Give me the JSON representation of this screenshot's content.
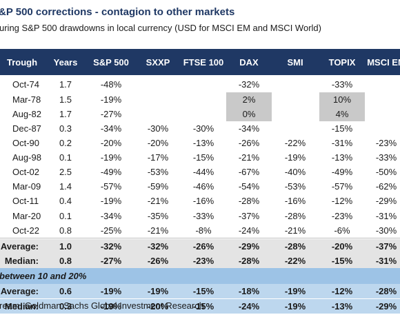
{
  "title": "&P 500 corrections - contagion to other markets",
  "subtitle": "uring S&P 500 drawdowns in local currency (USD for MSCI EM and MSCI World)",
  "source": "ream, Goldman Sachs Global Investment Research",
  "chart_data": {
    "type": "table",
    "columns": [
      "Trough",
      "Years",
      "S&P 500",
      "SXXP",
      "FTSE 100",
      "DAX",
      "SMI",
      "TOPIX",
      "MSCI EM"
    ],
    "rows": [
      [
        "Oct-74",
        "1.7",
        "-48%",
        "",
        "",
        "-32%",
        "",
        "-33%",
        ""
      ],
      [
        "Mar-78",
        "1.5",
        "-19%",
        "",
        "",
        "2%",
        "",
        "10%",
        ""
      ],
      [
        "Aug-82",
        "1.7",
        "-27%",
        "",
        "",
        "0%",
        "",
        "4%",
        ""
      ],
      [
        "Dec-87",
        "0.3",
        "-34%",
        "-30%",
        "-30%",
        "-34%",
        "",
        "-15%",
        ""
      ],
      [
        "Oct-90",
        "0.2",
        "-20%",
        "-20%",
        "-13%",
        "-26%",
        "-22%",
        "-31%",
        "-23%"
      ],
      [
        "Aug-98",
        "0.1",
        "-19%",
        "-17%",
        "-15%",
        "-21%",
        "-19%",
        "-13%",
        "-33%"
      ],
      [
        "Oct-02",
        "2.5",
        "-49%",
        "-53%",
        "-44%",
        "-67%",
        "-40%",
        "-49%",
        "-50%"
      ],
      [
        "Mar-09",
        "1.4",
        "-57%",
        "-59%",
        "-46%",
        "-54%",
        "-53%",
        "-57%",
        "-62%"
      ],
      [
        "Oct-11",
        "0.4",
        "-19%",
        "-21%",
        "-16%",
        "-28%",
        "-16%",
        "-12%",
        "-29%"
      ],
      [
        "Mar-20",
        "0.1",
        "-34%",
        "-35%",
        "-33%",
        "-37%",
        "-28%",
        "-23%",
        "-31%"
      ],
      [
        "Oct-22",
        "0.8",
        "-25%",
        "-21%",
        "-8%",
        "-24%",
        "-21%",
        "-6%",
        "-30%"
      ]
    ],
    "summary": [
      [
        "Average:",
        "1.0",
        "-32%",
        "-32%",
        "-26%",
        "-29%",
        "-28%",
        "-20%",
        "-37%"
      ],
      [
        "Median:",
        "0.8",
        "-27%",
        "-26%",
        "-23%",
        "-28%",
        "-22%",
        "-15%",
        "-31%"
      ]
    ],
    "section_label": "between 10 and 20%",
    "section_summary": [
      [
        "Average:",
        "0.6",
        "-19%",
        "-19%",
        "-15%",
        "-18%",
        "-19%",
        "-12%",
        "-28%"
      ],
      [
        "Median:",
        "0.3",
        "-19%",
        "-20%",
        "-15%",
        "-24%",
        "-19%",
        "-13%",
        "-29%"
      ]
    ],
    "highlighted_cells": [
      [
        1,
        5
      ],
      [
        2,
        5
      ],
      [
        1,
        7
      ],
      [
        2,
        7
      ]
    ],
    "colors": {
      "header_bg": "#1f3864",
      "summary_bg": "#e4e4e4",
      "section_bar_bg": "#9dc3e6",
      "section_summary_bg": "#bdd7ee",
      "highlight_bg": "#c9c9c9"
    }
  }
}
